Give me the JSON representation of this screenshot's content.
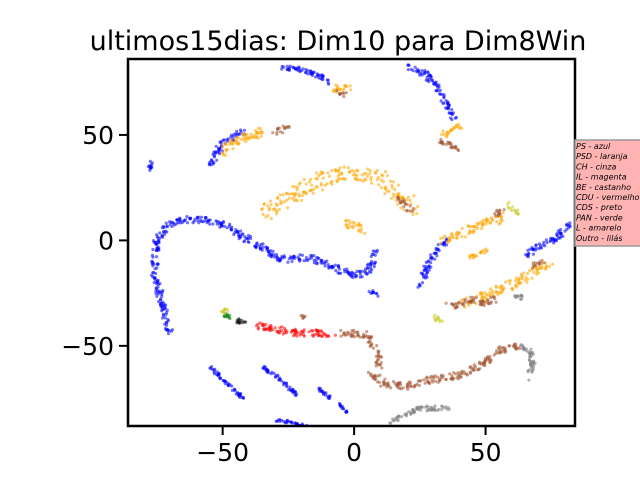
{
  "chart_data": {
    "type": "scatter",
    "title": "ultimos15dias: Dim10 para Dim8Win",
    "xlabel": "",
    "ylabel": "",
    "xlim": [
      -86,
      84
    ],
    "ylim": [
      -88,
      86
    ],
    "xticks": [
      -50,
      0,
      50
    ],
    "yticks": [
      -50,
      0,
      50
    ],
    "xtick_labels": [
      "−50",
      "0",
      "50"
    ],
    "ytick_labels": [
      "−50",
      "0",
      "50"
    ],
    "grid": false,
    "legend_placement": "right, partially outside axes",
    "legend_bg": "#ffb3b3",
    "legend": [
      {
        "label": "PS - azul",
        "color": "#0000ff"
      },
      {
        "label": "PSD - laranja",
        "color": "#ffa500"
      },
      {
        "label": "CH - cinza",
        "color": "#808080"
      },
      {
        "label": "IL - magenta",
        "color": "#ff00ff"
      },
      {
        "label": "BE - castanho",
        "color": "#a0522d"
      },
      {
        "label": "CDU - vermelho",
        "color": "#ff0000"
      },
      {
        "label": "CDS - preto",
        "color": "#000000"
      },
      {
        "label": "PAN - verde",
        "color": "#008000"
      },
      {
        "label": "L - amarelo",
        "color": "#cccc33"
      },
      {
        "label": "Outro - lilás",
        "color": "#c8a2c8"
      }
    ],
    "clusters": [
      {
        "color": "#0000ff",
        "points": [
          [
            -70,
            -45
          ],
          [
            -73,
            -30
          ],
          [
            -76,
            -15
          ],
          [
            -75,
            0
          ],
          [
            -72,
            5
          ],
          [
            -68,
            9
          ],
          [
            -62,
            10
          ],
          [
            -55,
            9
          ],
          [
            -48,
            7
          ],
          [
            -42,
            2
          ],
          [
            -36,
            -3
          ],
          [
            -30,
            -8
          ],
          [
            -24,
            -9
          ],
          [
            -18,
            -8
          ],
          [
            -12,
            -10
          ],
          [
            -6,
            -14
          ],
          [
            0,
            -17
          ],
          [
            6,
            -14
          ],
          [
            8,
            -5
          ]
        ],
        "width": 7
      },
      {
        "color": "#0000ff",
        "points": [
          [
            -55,
            35
          ],
          [
            -52,
            42
          ],
          [
            -48,
            48
          ],
          [
            -42,
            52
          ]
        ],
        "width": 7
      },
      {
        "color": "#0000ff",
        "points": [
          [
            -78,
            33
          ],
          [
            -77,
            38
          ]
        ],
        "width": 4
      },
      {
        "color": "#0000ff",
        "points": [
          [
            -28,
            82
          ],
          [
            -20,
            81
          ],
          [
            -13,
            78
          ],
          [
            -9,
            75
          ]
        ],
        "width": 5
      },
      {
        "color": "#0000ff",
        "points": [
          [
            20,
            83
          ],
          [
            28,
            78
          ],
          [
            33,
            70
          ],
          [
            36,
            63
          ],
          [
            38,
            57
          ]
        ],
        "width": 6
      },
      {
        "color": "#0000ff",
        "points": [
          [
            25,
            -22
          ],
          [
            28,
            -12
          ],
          [
            32,
            -4
          ],
          [
            35,
            0
          ]
        ],
        "width": 6
      },
      {
        "color": "#0000ff",
        "points": [
          [
            65,
            -7
          ],
          [
            72,
            -2
          ],
          [
            78,
            2
          ],
          [
            82,
            9
          ]
        ],
        "width": 6
      },
      {
        "color": "#0000ff",
        "points": [
          [
            -55,
            -60
          ],
          [
            -48,
            -68
          ],
          [
            -42,
            -75
          ]
        ],
        "width": 3
      },
      {
        "color": "#0000ff",
        "points": [
          [
            -35,
            -60
          ],
          [
            -28,
            -66
          ],
          [
            -22,
            -73
          ]
        ],
        "width": 3
      },
      {
        "color": "#0000ff",
        "points": [
          [
            -14,
            -70
          ],
          [
            -9,
            -75
          ]
        ],
        "width": 3
      },
      {
        "color": "#0000ff",
        "points": [
          [
            -6,
            -77
          ],
          [
            -3,
            -82
          ]
        ],
        "width": 3
      },
      {
        "color": "#0000ff",
        "points": [
          [
            -30,
            -85
          ],
          [
            -18,
            -88
          ]
        ],
        "width": 3
      },
      {
        "color": "#0000ff",
        "points": [
          [
            6,
            -24
          ],
          [
            9,
            -26
          ]
        ],
        "width": 3
      },
      {
        "color": "#ffa500",
        "points": [
          [
            -52,
            41
          ],
          [
            -45,
            47
          ],
          [
            -38,
            50
          ],
          [
            -33,
            52
          ]
        ],
        "width": 9
      },
      {
        "color": "#ffa500",
        "points": [
          [
            -35,
            12
          ],
          [
            -28,
            18
          ],
          [
            -20,
            24
          ],
          [
            -10,
            30
          ],
          [
            0,
            32
          ],
          [
            10,
            30
          ],
          [
            18,
            20
          ],
          [
            22,
            15
          ]
        ],
        "width": 16
      },
      {
        "color": "#ffa500",
        "points": [
          [
            -4,
            8
          ],
          [
            0,
            7
          ],
          [
            4,
            5
          ]
        ],
        "width": 8
      },
      {
        "color": "#ffa500",
        "points": [
          [
            -8,
            71
          ],
          [
            -5,
            73
          ],
          [
            -2,
            72
          ]
        ],
        "width": 6
      },
      {
        "color": "#ffa500",
        "points": [
          [
            33,
            50
          ],
          [
            37,
            52
          ],
          [
            40,
            55
          ]
        ],
        "width": 8
      },
      {
        "color": "#ffa500",
        "points": [
          [
            34,
            0
          ],
          [
            42,
            4
          ],
          [
            50,
            8
          ],
          [
            58,
            11
          ]
        ],
        "width": 9
      },
      {
        "color": "#ffa500",
        "points": [
          [
            42,
            -30
          ],
          [
            52,
            -25
          ],
          [
            62,
            -20
          ],
          [
            70,
            -14
          ],
          [
            74,
            -10
          ]
        ],
        "width": 9
      },
      {
        "color": "#ffa500",
        "points": [
          [
            44,
            -8
          ],
          [
            50,
            -5
          ]
        ],
        "width": 5
      },
      {
        "color": "#a0522d",
        "points": [
          [
            -30,
            51
          ],
          [
            -27,
            53
          ],
          [
            -25,
            53
          ]
        ],
        "width": 6
      },
      {
        "color": "#a0522d",
        "points": [
          [
            17,
            20
          ],
          [
            20,
            16
          ],
          [
            22,
            14
          ]
        ],
        "width": 6
      },
      {
        "color": "#a0522d",
        "points": [
          [
            -6,
            70
          ],
          [
            -3,
            69
          ]
        ],
        "width": 5
      },
      {
        "color": "#a0522d",
        "points": [
          [
            32,
            47
          ],
          [
            37,
            45
          ],
          [
            40,
            43
          ]
        ],
        "width": 5
      },
      {
        "color": "#a0522d",
        "points": [
          [
            53,
            12
          ],
          [
            57,
            14
          ]
        ],
        "width": 6
      },
      {
        "color": "#a0522d",
        "points": [
          [
            36,
            -31
          ],
          [
            40,
            -30
          ],
          [
            45,
            -28
          ],
          [
            50,
            -30
          ],
          [
            54,
            -28
          ]
        ],
        "width": 7
      },
      {
        "color": "#a0522d",
        "points": [
          [
            68,
            -12
          ],
          [
            72,
            -10
          ]
        ],
        "width": 5
      },
      {
        "color": "#a0522d",
        "points": [
          [
            -5,
            -44
          ],
          [
            0,
            -44
          ],
          [
            5,
            -45
          ],
          [
            8,
            -52
          ],
          [
            10,
            -60
          ]
        ],
        "width": 7
      },
      {
        "color": "#a0522d",
        "points": [
          [
            6,
            -63
          ],
          [
            12,
            -68
          ],
          [
            20,
            -69
          ],
          [
            30,
            -66
          ],
          [
            40,
            -64
          ],
          [
            50,
            -58
          ],
          [
            55,
            -52
          ],
          [
            63,
            -50
          ]
        ],
        "width": 7
      },
      {
        "color": "#808080",
        "points": [
          [
            63,
            -50
          ],
          [
            67,
            -53
          ],
          [
            68,
            -58
          ],
          [
            66,
            -66
          ]
        ],
        "width": 5
      },
      {
        "color": "#808080",
        "points": [
          [
            14,
            -86
          ],
          [
            18,
            -83
          ],
          [
            25,
            -80
          ],
          [
            36,
            -79
          ]
        ],
        "width": 5
      },
      {
        "color": "#ff0000",
        "points": [
          [
            -38,
            -40
          ],
          [
            -30,
            -42
          ],
          [
            -22,
            -44
          ],
          [
            -14,
            -44
          ],
          [
            -8,
            -44
          ]
        ],
        "width": 7
      },
      {
        "color": "#000000",
        "points": [
          [
            -45,
            -38
          ],
          [
            -41,
            -39
          ]
        ],
        "width": 5
      },
      {
        "color": "#008000",
        "points": [
          [
            -50,
            -35
          ],
          [
            -47,
            -37
          ]
        ],
        "width": 5
      },
      {
        "color": "#cccc33",
        "points": [
          [
            -52,
            -35
          ],
          [
            -48,
            -33
          ]
        ],
        "width": 4
      },
      {
        "color": "#cccc33",
        "points": [
          [
            58,
            17
          ],
          [
            62,
            13
          ]
        ],
        "width": 5
      },
      {
        "color": "#cccc33",
        "points": [
          [
            30,
            -36
          ],
          [
            34,
            -38
          ]
        ],
        "width": 5
      },
      {
        "color": "#808080",
        "points": [
          [
            60,
            -27
          ],
          [
            64,
            -27
          ]
        ],
        "width": 4
      },
      {
        "color": "#a0522d",
        "points": [
          [
            -20,
            -36
          ],
          [
            -18,
            -37
          ]
        ],
        "width": 3
      }
    ]
  }
}
